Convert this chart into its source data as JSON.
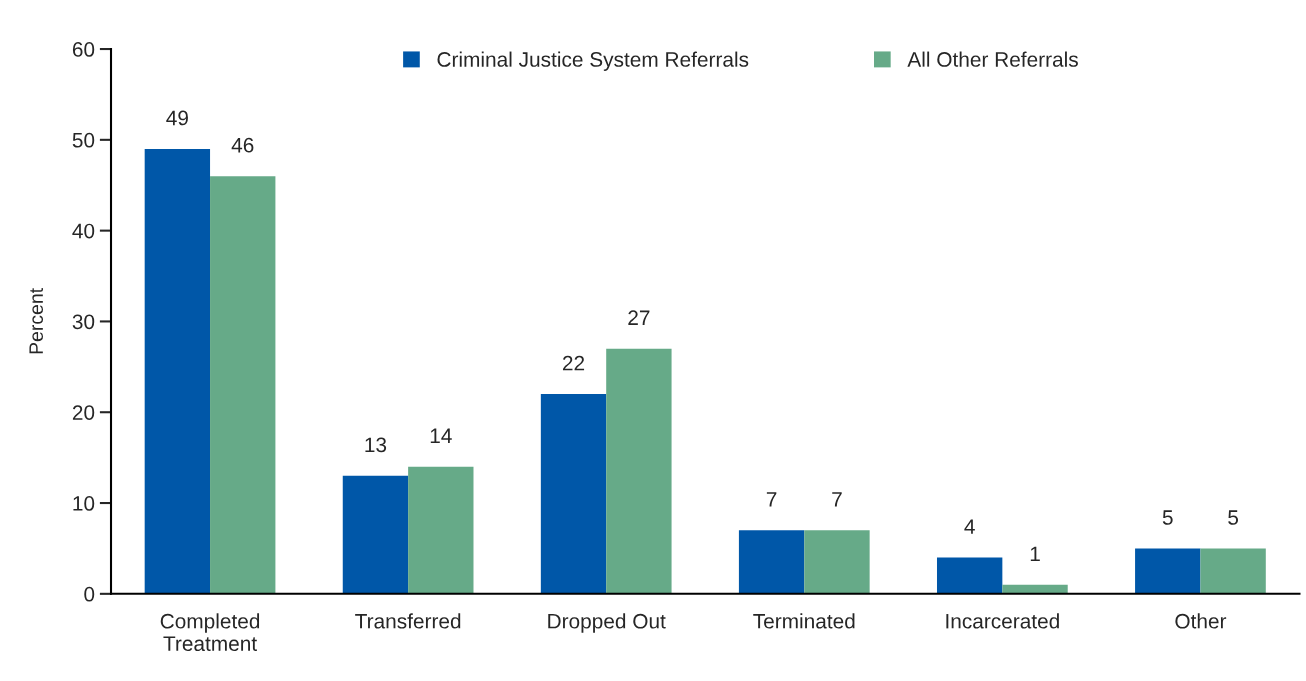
{
  "chart_data": {
    "type": "bar",
    "categories": [
      "Completed\nTreatment",
      "Transferred",
      "Dropped Out",
      "Terminated",
      "Incarcerated",
      "Other"
    ],
    "series": [
      {
        "name": "Criminal Justice System Referrals",
        "color": "#0057a8",
        "values": [
          49,
          13,
          22,
          7,
          4,
          5
        ]
      },
      {
        "name": "All Other Referrals",
        "color": "#66aa88",
        "values": [
          46,
          14,
          27,
          7,
          1,
          5
        ]
      }
    ],
    "ylabel": "Percent",
    "ylim": [
      0,
      60
    ],
    "yticks": [
      0,
      10,
      20,
      30,
      40,
      50,
      60
    ],
    "data_labels": true,
    "grid": false,
    "legend": "top"
  }
}
